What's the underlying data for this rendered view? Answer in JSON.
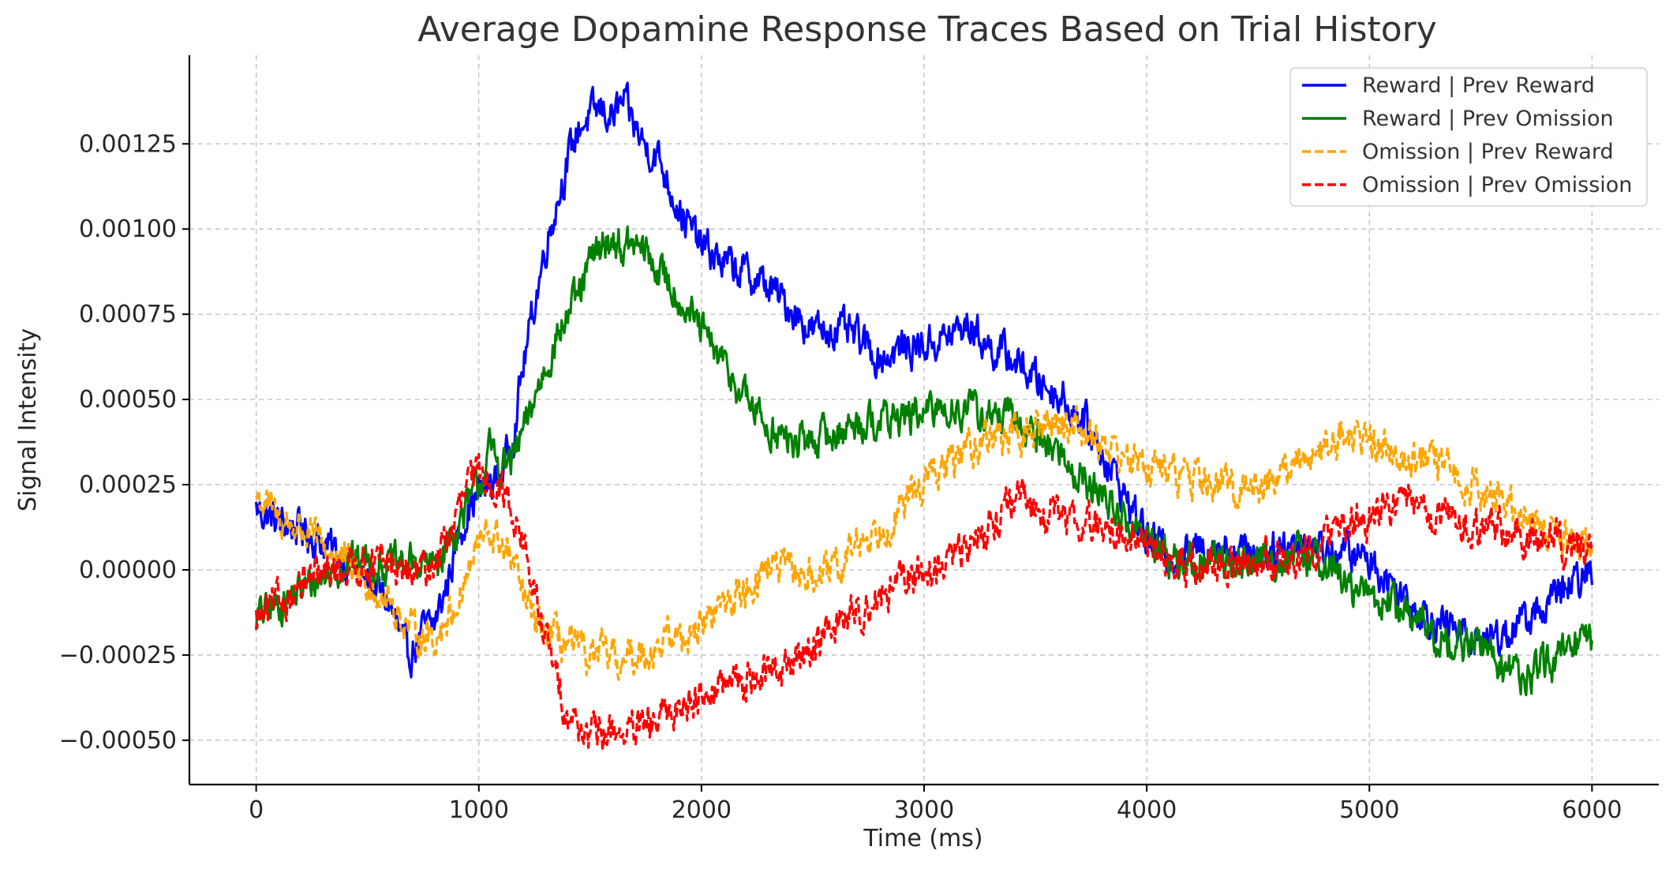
{
  "chart_data": {
    "type": "line",
    "title": "Average Dopamine Response Traces Based on Trial History",
    "xlabel": "Time (ms)",
    "ylabel": "Signal Intensity",
    "xlim": [
      -300,
      6300
    ],
    "ylim": [
      -0.00063,
      0.00151
    ],
    "xticks": [
      0,
      1000,
      2000,
      3000,
      4000,
      5000,
      6000
    ],
    "xtick_labels": [
      "0",
      "1000",
      "2000",
      "3000",
      "4000",
      "5000",
      "6000"
    ],
    "yticks": [
      -0.0005,
      -0.00025,
      0,
      0.00025,
      0.0005,
      0.00075,
      0.001,
      0.00125
    ],
    "ytick_labels": [
      "−0.00050",
      "−0.00025",
      "0.00000",
      "0.00025",
      "0.00050",
      "0.00075",
      "0.00100",
      "0.00125"
    ],
    "grid": true,
    "legend_position": "top-right",
    "series": [
      {
        "name": "Reward | Prev Reward",
        "color": "#0000ff",
        "dash": "solid",
        "x": [
          0,
          100,
          200,
          300,
          400,
          500,
          600,
          680,
          750,
          800,
          850,
          900,
          950,
          1000,
          1050,
          1100,
          1150,
          1200,
          1250,
          1300,
          1350,
          1400,
          1450,
          1500,
          1550,
          1600,
          1650,
          1700,
          1750,
          1800,
          1850,
          1900,
          1950,
          2000,
          2100,
          2200,
          2300,
          2400,
          2500,
          2600,
          2700,
          2800,
          2900,
          3000,
          3100,
          3200,
          3300,
          3400,
          3500,
          3600,
          3700,
          3800,
          3900,
          4000,
          4100,
          4200,
          4300,
          4400,
          4500,
          4600,
          4700,
          4800,
          4900,
          5000,
          5100,
          5200,
          5300,
          5400,
          5500,
          5600,
          5700,
          5800,
          5900,
          6000
        ],
        "y": [
          0.00018,
          0.00014,
          0.00012,
          8e-05,
          3e-05,
          -3e-05,
          -0.0001,
          -0.00026,
          -0.00018,
          -0.00016,
          -6e-05,
          8e-05,
          0.00018,
          0.00022,
          0.00025,
          0.00028,
          0.00038,
          0.0006,
          0.00078,
          0.00095,
          0.00108,
          0.0012,
          0.0013,
          0.00133,
          0.00135,
          0.00133,
          0.00137,
          0.0013,
          0.00124,
          0.00122,
          0.00114,
          0.00106,
          0.001,
          0.00095,
          0.0009,
          0.00087,
          0.00083,
          0.00077,
          0.0007,
          0.00071,
          0.00068,
          0.00062,
          0.00065,
          0.00066,
          0.00068,
          0.00072,
          0.00065,
          0.00062,
          0.00056,
          0.00052,
          0.00045,
          0.00035,
          0.00022,
          0.0001,
          5e-05,
          5e-05,
          8e-05,
          6e-05,
          5e-05,
          7e-05,
          9e-05,
          6e-05,
          5e-05,
          3e-05,
          -4e-05,
          -0.0001,
          -0.00015,
          -0.00018,
          -0.0002,
          -0.00019,
          -0.00015,
          -0.0001,
          -5e-05,
          -1e-05
        ]
      },
      {
        "name": "Reward | Prev Omission",
        "color": "#008000",
        "dash": "solid",
        "x": [
          0,
          100,
          200,
          300,
          400,
          500,
          600,
          700,
          800,
          900,
          1000,
          1050,
          1100,
          1150,
          1200,
          1250,
          1300,
          1350,
          1400,
          1450,
          1500,
          1550,
          1600,
          1650,
          1700,
          1750,
          1800,
          1850,
          1900,
          1950,
          2000,
          2100,
          2200,
          2300,
          2400,
          2500,
          2600,
          2700,
          2800,
          2900,
          3000,
          3100,
          3200,
          3300,
          3400,
          3500,
          3600,
          3700,
          3800,
          3900,
          4000,
          4100,
          4200,
          4300,
          4400,
          4500,
          4600,
          4700,
          4800,
          4900,
          5000,
          5100,
          5200,
          5300,
          5400,
          5500,
          5600,
          5700,
          5800,
          5900,
          6000
        ],
        "y": [
          -0.00014,
          -0.0001,
          -6e-05,
          -2e-05,
          2e-05,
          3e-05,
          1e-05,
          2e-05,
          1e-05,
          0.00012,
          0.00025,
          0.00035,
          0.0003,
          0.00032,
          0.0004,
          0.0005,
          0.0006,
          0.00068,
          0.00075,
          0.0008,
          0.0009,
          0.00095,
          0.00097,
          0.00094,
          0.00095,
          0.00093,
          0.00088,
          0.00085,
          0.0008,
          0.00075,
          0.0007,
          0.0006,
          0.0005,
          0.00042,
          0.00037,
          0.00038,
          0.0004,
          0.00043,
          0.00044,
          0.00045,
          0.00045,
          0.00048,
          0.00047,
          0.00045,
          0.00044,
          0.0004,
          0.00035,
          0.00027,
          0.00022,
          0.00015,
          9e-05,
          4e-05,
          2e-05,
          3e-05,
          2e-05,
          3e-05,
          3e-05,
          4e-05,
          3e-05,
          -5e-05,
          -8e-05,
          -0.0001,
          -0.00014,
          -0.0002,
          -0.00022,
          -0.00022,
          -0.00028,
          -0.00032,
          -0.00028,
          -0.00024,
          -0.0002
        ]
      },
      {
        "name": "Omission | Prev Reward",
        "color": "#ffa500",
        "dash": "dashed",
        "x": [
          0,
          100,
          200,
          300,
          400,
          500,
          600,
          700,
          800,
          900,
          1000,
          1050,
          1100,
          1150,
          1200,
          1250,
          1300,
          1350,
          1400,
          1450,
          1500,
          1550,
          1600,
          1650,
          1700,
          1750,
          1800,
          1850,
          1900,
          2000,
          2100,
          2200,
          2300,
          2400,
          2500,
          2600,
          2700,
          2800,
          2900,
          3000,
          3100,
          3200,
          3300,
          3400,
          3500,
          3600,
          3700,
          3800,
          3900,
          4000,
          4100,
          4200,
          4300,
          4400,
          4500,
          4600,
          4700,
          4800,
          4900,
          5000,
          5100,
          5200,
          5300,
          5400,
          5500,
          5600,
          5700,
          5800,
          5900,
          6000
        ],
        "y": [
          0.00022,
          0.00015,
          0.00012,
          7e-05,
          2e-05,
          -3e-05,
          -0.0001,
          -0.00018,
          -0.0002,
          -0.0001,
          8e-05,
          0.0001,
          8e-05,
          2e-05,
          -8e-05,
          -0.00015,
          -0.00018,
          -0.0002,
          -0.00022,
          -0.00024,
          -0.00026,
          -0.00025,
          -0.00026,
          -0.00028,
          -0.00025,
          -0.00024,
          -0.00022,
          -0.0002,
          -0.0002,
          -0.00016,
          -0.0001,
          -6e-05,
          2e-05,
          -1e-05,
          -2e-05,
          -1e-05,
          8e-05,
          0.00012,
          0.00018,
          0.00026,
          0.0003,
          0.00036,
          0.0004,
          0.00039,
          0.00041,
          0.00044,
          0.00042,
          0.00038,
          0.00033,
          0.00031,
          0.00029,
          0.00027,
          0.00025,
          0.00024,
          0.00025,
          0.00028,
          0.00032,
          0.00037,
          0.0004,
          0.00038,
          0.00035,
          0.00033,
          0.00031,
          0.00027,
          0.00024,
          0.0002,
          0.00016,
          0.00012,
          9e-05,
          8e-05
        ]
      },
      {
        "name": "Omission | Prev Omission",
        "color": "#ff0000",
        "dash": "dashed",
        "x": [
          0,
          100,
          200,
          300,
          400,
          500,
          600,
          700,
          800,
          900,
          950,
          1000,
          1050,
          1100,
          1150,
          1200,
          1250,
          1300,
          1350,
          1400,
          1450,
          1500,
          1550,
          1600,
          1700,
          1800,
          1900,
          2000,
          2100,
          2200,
          2300,
          2400,
          2500,
          2600,
          2700,
          2800,
          2900,
          3000,
          3100,
          3200,
          3300,
          3400,
          3500,
          3600,
          3700,
          3800,
          3900,
          4000,
          4100,
          4200,
          4300,
          4400,
          4500,
          4600,
          4700,
          4800,
          4900,
          5000,
          5100,
          5200,
          5300,
          5400,
          5500,
          5600,
          5700,
          5800,
          5900,
          6000
        ],
        "y": [
          -0.00015,
          -0.0001,
          -5e-05,
          -2e-05,
          1e-05,
          2e-05,
          1e-05,
          -2e-05,
          2e-05,
          0.00015,
          0.00025,
          0.00028,
          0.00027,
          0.00024,
          0.00018,
          8e-05,
          -8e-05,
          -0.0002,
          -0.00032,
          -0.00042,
          -0.00046,
          -0.00048,
          -0.00049,
          -0.00047,
          -0.00048,
          -0.00045,
          -0.0004,
          -0.00036,
          -0.00034,
          -0.00032,
          -0.0003,
          -0.00028,
          -0.00022,
          -0.00016,
          -0.00012,
          -8e-05,
          -4e-05,
          -1e-05,
          2e-05,
          7e-05,
          0.00014,
          0.0002,
          0.00018,
          0.00016,
          0.00014,
          0.00012,
          0.0001,
          8e-05,
          2e-05,
          1e-05,
          1e-05,
          2e-05,
          3e-05,
          3e-05,
          5e-05,
          9e-05,
          0.00013,
          0.00016,
          0.00019,
          0.00018,
          0.00016,
          0.00014,
          0.00012,
          0.00011,
          0.0001,
          9e-05,
          7e-05,
          5e-05
        ]
      }
    ]
  }
}
